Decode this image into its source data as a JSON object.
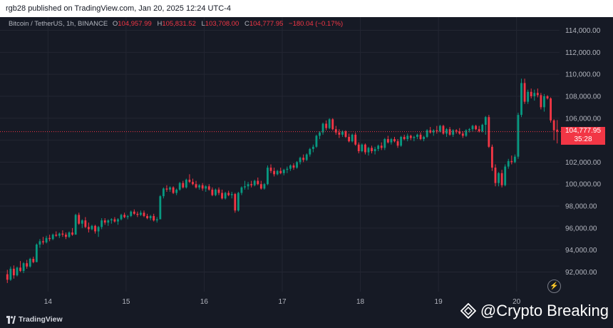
{
  "publish_line": "rgb28 published on TradingView.com, Jan 20, 2025 12:24 UTC-4",
  "legend": {
    "symbol": "Bitcoin / TetherUS, 1h, BINANCE",
    "open_label": "O",
    "open_value": "104,957.99",
    "high_label": "H",
    "high_value": "105,831.52",
    "low_label": "L",
    "low_value": "103,708.00",
    "close_label": "C",
    "close_value": "104,777.95",
    "change": "−180.04 (−0.17%)"
  },
  "price_tag": {
    "price": "104,777.95",
    "countdown": "35:28"
  },
  "branding": {
    "logo_text": "TradingView",
    "watermark": "@Crypto Breaking"
  },
  "icons": {
    "flash": "flash-icon",
    "tv_logo": "tradingview-logo-icon",
    "watermark_gem": "crypto-breaking-logo-icon"
  },
  "colors": {
    "up": "#089981",
    "down": "#f23645",
    "background": "#161a25",
    "axis_text": "#b2b5be"
  },
  "chart_data": {
    "type": "candlestick",
    "title": "Bitcoin / TetherUS, 1h, BINANCE",
    "x_ticks": [
      "14",
      "15",
      "16",
      "17",
      "18",
      "19",
      "20"
    ],
    "y_ticks": [
      "92,000.00",
      "94,000.00",
      "96,000.00",
      "98,000.00",
      "100,000.00",
      "102,000.00",
      "104,000.00",
      "106,000.00",
      "108,000.00",
      "110,000.00",
      "112,000.00",
      "114,000.00"
    ],
    "ylim": [
      91000,
      115000
    ],
    "last_price": 104777.95,
    "grid": true,
    "ohlc": [
      [
        91800,
        92200,
        91000,
        91300
      ],
      [
        91300,
        92500,
        91200,
        92300
      ],
      [
        92300,
        92600,
        91400,
        91700
      ],
      [
        91700,
        92500,
        91600,
        92400
      ],
      [
        92400,
        93000,
        92000,
        92100
      ],
      [
        92100,
        92900,
        91900,
        92800
      ],
      [
        92800,
        93100,
        92300,
        92500
      ],
      [
        92500,
        93300,
        92400,
        93200
      ],
      [
        93200,
        93400,
        92800,
        92900
      ],
      [
        92900,
        94600,
        92900,
        94500
      ],
      [
        94500,
        95000,
        94200,
        94800
      ],
      [
        94800,
        95200,
        94500,
        94700
      ],
      [
        94700,
        95300,
        94600,
        95100
      ],
      [
        95100,
        95400,
        94800,
        95000
      ],
      [
        95000,
        95500,
        94900,
        95400
      ],
      [
        95400,
        95700,
        95200,
        95300
      ],
      [
        95300,
        95600,
        95100,
        95500
      ],
      [
        95500,
        95800,
        95200,
        95400
      ],
      [
        95400,
        95600,
        95000,
        95200
      ],
      [
        95200,
        95700,
        95100,
        95600
      ],
      [
        95600,
        96000,
        95300,
        95400
      ],
      [
        95400,
        97300,
        95400,
        97200
      ],
      [
        97200,
        97400,
        96300,
        96400
      ],
      [
        96400,
        96800,
        96000,
        96700
      ],
      [
        96700,
        97000,
        96000,
        96100
      ],
      [
        96100,
        96500,
        95600,
        95900
      ],
      [
        95900,
        96300,
        95800,
        96200
      ],
      [
        96200,
        96300,
        95500,
        95700
      ],
      [
        95700,
        96200,
        95200,
        96100
      ],
      [
        96100,
        96900,
        95900,
        96700
      ],
      [
        96700,
        96900,
        96300,
        96500
      ],
      [
        96500,
        96800,
        96200,
        96700
      ],
      [
        96700,
        96900,
        96400,
        96800
      ],
      [
        96800,
        97000,
        96500,
        96600
      ],
      [
        96600,
        96900,
        96300,
        96800
      ],
      [
        96800,
        97300,
        96700,
        97200
      ],
      [
        97200,
        97400,
        96900,
        97000
      ],
      [
        97000,
        97200,
        96800,
        97100
      ],
      [
        97100,
        97600,
        97000,
        97500
      ],
      [
        97500,
        97700,
        97200,
        97300
      ],
      [
        97300,
        97500,
        97000,
        97200
      ],
      [
        97200,
        97600,
        97100,
        97400
      ],
      [
        97400,
        97600,
        97000,
        97100
      ],
      [
        97100,
        97300,
        96800,
        96900
      ],
      [
        96900,
        97200,
        96700,
        97100
      ],
      [
        97100,
        97300,
        96600,
        96700
      ],
      [
        96700,
        97000,
        96500,
        96800
      ],
      [
        96800,
        99000,
        96800,
        98900
      ],
      [
        98900,
        99700,
        98700,
        99600
      ],
      [
        99600,
        99900,
        99300,
        99500
      ],
      [
        99500,
        99800,
        99300,
        99700
      ],
      [
        99700,
        99800,
        99100,
        99200
      ],
      [
        99200,
        99600,
        99000,
        99500
      ],
      [
        99500,
        100200,
        99400,
        100100
      ],
      [
        100100,
        100300,
        99600,
        99700
      ],
      [
        99700,
        100500,
        99600,
        100400
      ],
      [
        100400,
        100900,
        100100,
        100200
      ],
      [
        100200,
        100500,
        99900,
        100000
      ],
      [
        100000,
        100300,
        99600,
        99700
      ],
      [
        99700,
        100000,
        99500,
        99900
      ],
      [
        99900,
        100100,
        99400,
        99600
      ],
      [
        99600,
        99900,
        99300,
        99800
      ],
      [
        99800,
        100000,
        99400,
        99500
      ],
      [
        99500,
        99700,
        98900,
        99000
      ],
      [
        99000,
        99600,
        98900,
        99500
      ],
      [
        99500,
        99700,
        99000,
        99200
      ],
      [
        99200,
        99500,
        98600,
        98700
      ],
      [
        98700,
        99300,
        98600,
        99200
      ],
      [
        99200,
        99400,
        98900,
        99000
      ],
      [
        99000,
        99300,
        98700,
        99100
      ],
      [
        99100,
        99200,
        97400,
        97600
      ],
      [
        97600,
        99300,
        97500,
        99200
      ],
      [
        99200,
        99800,
        99000,
        99700
      ],
      [
        99700,
        100300,
        99500,
        99800
      ],
      [
        99800,
        100200,
        99500,
        100000
      ],
      [
        100000,
        100300,
        99700,
        99900
      ],
      [
        99900,
        100400,
        99800,
        100300
      ],
      [
        100300,
        100600,
        99900,
        100000
      ],
      [
        100000,
        100300,
        99500,
        99600
      ],
      [
        99600,
        100100,
        99500,
        100000
      ],
      [
        100000,
        101700,
        99900,
        101500
      ],
      [
        101500,
        101800,
        101000,
        101200
      ],
      [
        101200,
        101500,
        100700,
        100900
      ],
      [
        100900,
        101300,
        100800,
        101200
      ],
      [
        101200,
        101500,
        100900,
        101000
      ],
      [
        101000,
        101400,
        100800,
        101300
      ],
      [
        101300,
        101600,
        101000,
        101400
      ],
      [
        101400,
        101800,
        101200,
        101700
      ],
      [
        101700,
        101900,
        101300,
        101500
      ],
      [
        101500,
        102100,
        101400,
        102000
      ],
      [
        102000,
        102500,
        101800,
        102400
      ],
      [
        102400,
        102700,
        102000,
        102200
      ],
      [
        102200,
        102800,
        102100,
        102700
      ],
      [
        102700,
        103300,
        102500,
        103200
      ],
      [
        103200,
        103600,
        102900,
        103400
      ],
      [
        103400,
        104500,
        103300,
        104400
      ],
      [
        104400,
        104800,
        104100,
        104700
      ],
      [
        104700,
        105600,
        104500,
        105500
      ],
      [
        105500,
        105800,
        104900,
        105100
      ],
      [
        105100,
        106000,
        105000,
        105900
      ],
      [
        105900,
        106000,
        104900,
        105000
      ],
      [
        105000,
        105300,
        104500,
        104700
      ],
      [
        104700,
        105000,
        104200,
        104500
      ],
      [
        104500,
        104900,
        104300,
        104800
      ],
      [
        104800,
        104900,
        104200,
        104300
      ],
      [
        104300,
        104600,
        103800,
        103900
      ],
      [
        103900,
        104600,
        103800,
        104500
      ],
      [
        104500,
        104700,
        103500,
        103600
      ],
      [
        103600,
        103800,
        102800,
        103000
      ],
      [
        103000,
        103700,
        102900,
        103600
      ],
      [
        103600,
        103700,
        102700,
        102900
      ],
      [
        102900,
        103400,
        102600,
        103300
      ],
      [
        103300,
        103500,
        102800,
        103000
      ],
      [
        103000,
        103400,
        102700,
        103200
      ],
      [
        103200,
        103600,
        103000,
        103500
      ],
      [
        103500,
        103800,
        103100,
        103300
      ],
      [
        103300,
        104200,
        103100,
        104100
      ],
      [
        104100,
        104400,
        103700,
        103800
      ],
      [
        103800,
        104200,
        103600,
        104100
      ],
      [
        104100,
        104300,
        103800,
        103900
      ],
      [
        103900,
        104100,
        103300,
        103500
      ],
      [
        103500,
        104400,
        103400,
        104300
      ],
      [
        104300,
        104500,
        104000,
        104100
      ],
      [
        104100,
        104600,
        103900,
        104400
      ],
      [
        104400,
        104500,
        104000,
        104200
      ],
      [
        104200,
        104400,
        103900,
        104300
      ],
      [
        104300,
        104600,
        104100,
        104500
      ],
      [
        104500,
        104700,
        104000,
        104100
      ],
      [
        104100,
        104400,
        103900,
        104300
      ],
      [
        104300,
        105000,
        104200,
        104900
      ],
      [
        104900,
        105200,
        104600,
        104700
      ],
      [
        104700,
        105000,
        104400,
        104900
      ],
      [
        104900,
        105300,
        104600,
        104800
      ],
      [
        104800,
        105400,
        104700,
        105300
      ],
      [
        105300,
        105400,
        104500,
        104600
      ],
      [
        104600,
        105100,
        104300,
        105000
      ],
      [
        105000,
        105200,
        104400,
        104500
      ],
      [
        104500,
        105000,
        104300,
        104900
      ],
      [
        104900,
        105000,
        104600,
        104800
      ],
      [
        104800,
        105100,
        104500,
        104600
      ],
      [
        104600,
        104800,
        104200,
        104400
      ],
      [
        104400,
        105000,
        104300,
        104900
      ],
      [
        104900,
        105100,
        104700,
        105000
      ],
      [
        105000,
        105400,
        104800,
        105300
      ],
      [
        105300,
        105400,
        104900,
        105000
      ],
      [
        105000,
        105300,
        104700,
        104800
      ],
      [
        104800,
        105500,
        104700,
        105400
      ],
      [
        105400,
        106200,
        104500,
        106100
      ],
      [
        106100,
        106300,
        103300,
        103400
      ],
      [
        103400,
        103600,
        101200,
        101500
      ],
      [
        101500,
        101800,
        99800,
        100100
      ],
      [
        100100,
        101100,
        99800,
        101000
      ],
      [
        101000,
        101300,
        99700,
        99900
      ],
      [
        99900,
        101800,
        99800,
        101600
      ],
      [
        101600,
        102300,
        101400,
        102100
      ],
      [
        102100,
        102600,
        101800,
        102000
      ],
      [
        102000,
        102700,
        101900,
        102500
      ],
      [
        102500,
        106500,
        102300,
        106300
      ],
      [
        106300,
        109600,
        106100,
        109200
      ],
      [
        109200,
        109600,
        107300,
        107500
      ],
      [
        107500,
        108600,
        107300,
        108400
      ],
      [
        108400,
        108700,
        107800,
        108000
      ],
      [
        108000,
        108600,
        107600,
        108300
      ],
      [
        108300,
        108700,
        107900,
        108100
      ],
      [
        108100,
        108300,
        106800,
        107000
      ],
      [
        107000,
        108200,
        106600,
        108000
      ],
      [
        108000,
        108100,
        107700,
        107800
      ],
      [
        107800,
        107900,
        105600,
        105800
      ],
      [
        105800,
        105900,
        104000,
        104900
      ],
      [
        104957.99,
        105831.52,
        103708,
        104777.95
      ]
    ]
  }
}
